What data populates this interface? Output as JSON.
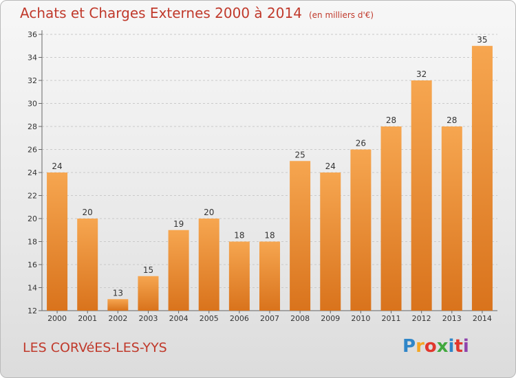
{
  "header": {
    "title": "Achats et Charges Externes 2000 à 2014",
    "subtitle": "(en milliers d'€)"
  },
  "footer": {
    "commune": "LES CORVéES-LES-YYS",
    "logo_letters": [
      "P",
      "r",
      "o",
      "x",
      "i",
      "t",
      "i"
    ]
  },
  "colors": {
    "bar_top": "#f6a650",
    "bar_bottom": "#d9731c",
    "text": "#c0392b"
  },
  "chart_data": {
    "type": "bar",
    "title": "Achats et Charges Externes 2000 à 2014",
    "subtitle": "(en milliers d'€)",
    "categories": [
      "2000",
      "2001",
      "2002",
      "2003",
      "2004",
      "2005",
      "2006",
      "2007",
      "2008",
      "2009",
      "2010",
      "2011",
      "2012",
      "2013",
      "2014"
    ],
    "values": [
      24,
      20,
      13,
      15,
      19,
      20,
      18,
      18,
      25,
      24,
      26,
      28,
      32,
      28,
      35
    ],
    "ylim": [
      12,
      36
    ],
    "yticks": [
      12,
      14,
      16,
      18,
      20,
      22,
      24,
      26,
      28,
      30,
      32,
      34,
      36
    ],
    "grid": true,
    "xlabel": "",
    "ylabel": ""
  }
}
